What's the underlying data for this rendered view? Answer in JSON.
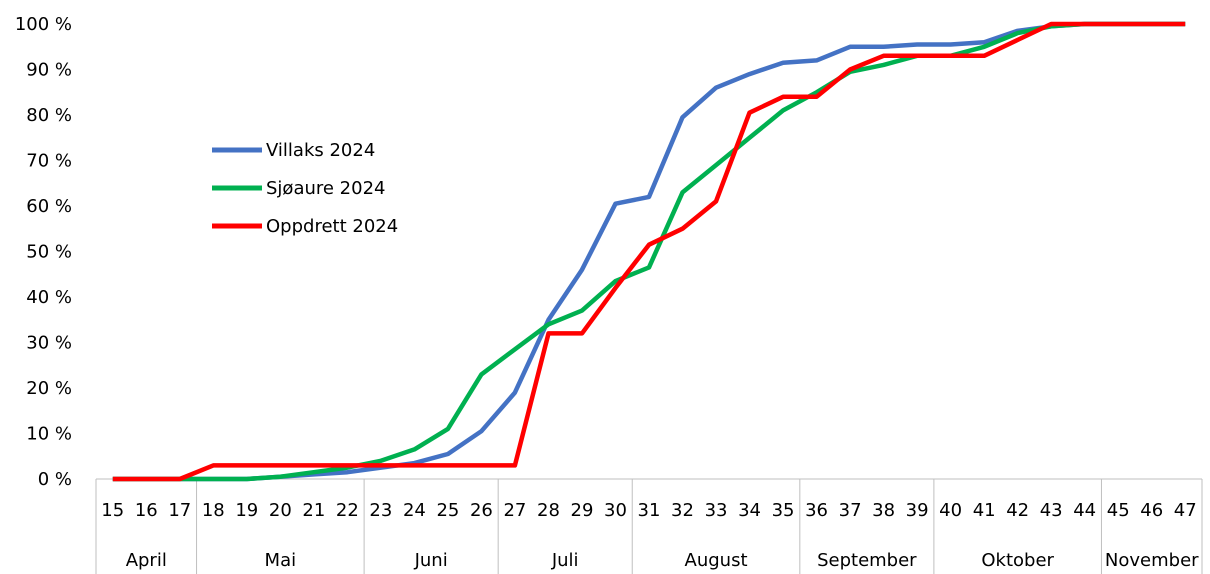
{
  "chart_data": {
    "type": "line",
    "title": "",
    "xlabel": "",
    "ylabel": "",
    "y_unit": "%",
    "ylim": [
      0,
      100
    ],
    "yticks": [
      0,
      10,
      20,
      30,
      40,
      50,
      60,
      70,
      80,
      90,
      100
    ],
    "ytick_labels": [
      "0 %",
      "10 %",
      "20 %",
      "30 %",
      "40 %",
      "50 %",
      "60 %",
      "70 %",
      "80 %",
      "90 %",
      "100 %"
    ],
    "grid": false,
    "legend_position": "left-center",
    "x": [
      15,
      16,
      17,
      18,
      19,
      20,
      21,
      22,
      23,
      24,
      25,
      26,
      27,
      28,
      29,
      30,
      31,
      32,
      33,
      34,
      35,
      36,
      37,
      38,
      39,
      40,
      41,
      42,
      43,
      44,
      45,
      46,
      47
    ],
    "month_groups": [
      {
        "label": "April",
        "weeks": [
          15,
          16,
          17
        ]
      },
      {
        "label": "Mai",
        "weeks": [
          18,
          19,
          20,
          21,
          22
        ]
      },
      {
        "label": "Juni",
        "weeks": [
          23,
          24,
          25,
          26
        ]
      },
      {
        "label": "Juli",
        "weeks": [
          27,
          28,
          29,
          30
        ]
      },
      {
        "label": "August",
        "weeks": [
          31,
          32,
          33,
          34,
          35
        ]
      },
      {
        "label": "September",
        "weeks": [
          36,
          37,
          38,
          39
        ]
      },
      {
        "label": "Oktober",
        "weeks": [
          40,
          41,
          42,
          43,
          44
        ]
      },
      {
        "label": "November",
        "weeks": [
          45,
          46,
          47
        ]
      }
    ],
    "series": [
      {
        "name": "Villaks 2024",
        "color": "#4472c4",
        "values": [
          0,
          0,
          0,
          0,
          0,
          0.5,
          1,
          1.5,
          2.5,
          3.5,
          5.5,
          10.5,
          19,
          35,
          46,
          60.5,
          62,
          79.5,
          86,
          89,
          91.5,
          92,
          95,
          95,
          95.5,
          95.5,
          96,
          98.5,
          99.5,
          100,
          100,
          100,
          100
        ]
      },
      {
        "name": "Sjøaure 2024",
        "color": "#00b050",
        "values": [
          0,
          0,
          0,
          0,
          0,
          0.5,
          1.5,
          2.5,
          4,
          6.5,
          11,
          23,
          28.5,
          34,
          37,
          43.5,
          46.5,
          63,
          69,
          75,
          81,
          85,
          89.5,
          91,
          93,
          93,
          95,
          98,
          99.5,
          100,
          100,
          100,
          100
        ]
      },
      {
        "name": "Oppdrett 2024",
        "color": "#ff0000",
        "values": [
          0,
          0,
          0,
          3,
          3,
          3,
          3,
          3,
          3,
          3,
          3,
          3,
          3,
          32,
          32,
          42,
          51.5,
          55,
          61,
          80.5,
          84,
          84,
          90,
          93,
          93,
          93,
          93,
          96.5,
          100,
          100,
          100,
          100,
          100
        ]
      }
    ]
  }
}
